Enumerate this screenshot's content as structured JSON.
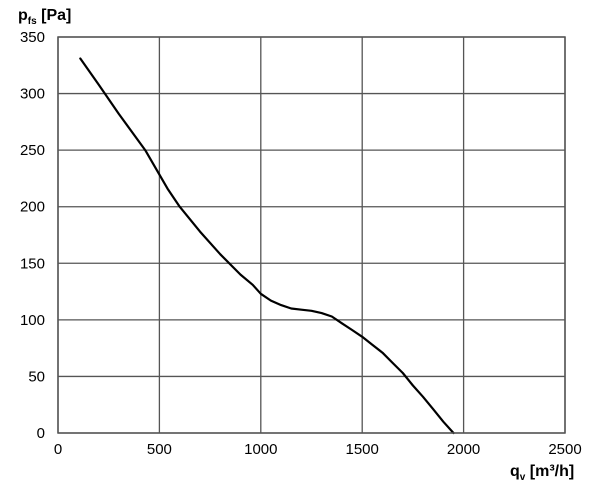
{
  "chart_data": {
    "type": "line",
    "xlabel": {
      "prefix": "q",
      "sub": "v",
      "suffix": " [m³/h]"
    },
    "ylabel": {
      "prefix": "p",
      "sub": "fs",
      "suffix": " [Pa]"
    },
    "xlim": [
      0,
      2500
    ],
    "ylim": [
      0,
      350
    ],
    "xticks": [
      "0",
      "500",
      "1000",
      "1500",
      "2000",
      "2500"
    ],
    "yticks": [
      "0",
      "50",
      "100",
      "150",
      "200",
      "250",
      "300",
      "350"
    ],
    "grid": true,
    "line_color": "#000000",
    "series": [
      {
        "x": [
          110,
          200,
          300,
          430,
          540,
          600,
          700,
          800,
          900,
          960,
          1000,
          1050,
          1100,
          1150,
          1200,
          1250,
          1300,
          1350,
          1400,
          1450,
          1500,
          1550,
          1600,
          1650,
          1700,
          1750,
          1800,
          1850,
          1900,
          1950
        ],
        "y": [
          331,
          308,
          282,
          250,
          216,
          200,
          178,
          158,
          140,
          131,
          123,
          117,
          113,
          110,
          109,
          108,
          106,
          103,
          97,
          91,
          85,
          78,
          71,
          62,
          53,
          42,
          32,
          21,
          10,
          0
        ]
      }
    ]
  }
}
